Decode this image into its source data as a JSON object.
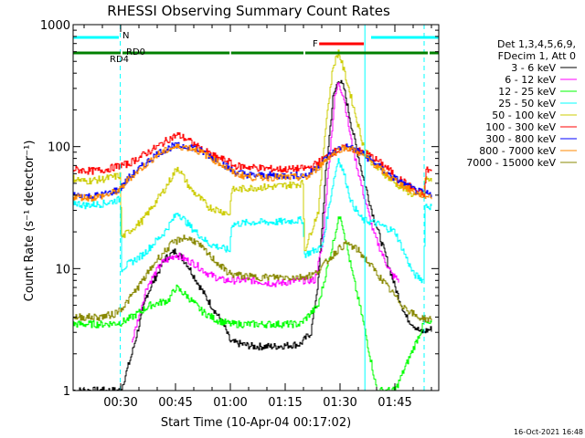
{
  "chart_data": {
    "type": "line",
    "title": "RHESSI Observing Summary Count Rates",
    "xlabel": "Start Time (10-Apr-04 00:17:02)",
    "ylabel": "Count Rate (s⁻¹ detector⁻¹)",
    "yscale": "log",
    "ylim": [
      1,
      1000
    ],
    "xlim_minutes": [
      17.0,
      117.0
    ],
    "x_ticks": [
      {
        "t": 30,
        "label": "00:30"
      },
      {
        "t": 45,
        "label": "00:45"
      },
      {
        "t": 60,
        "label": "01:00"
      },
      {
        "t": 75,
        "label": "01:15"
      },
      {
        "t": 90,
        "label": "01:30"
      },
      {
        "t": 105,
        "label": "01:45"
      }
    ],
    "y_ticks": [
      {
        "v": 1,
        "label": "1"
      },
      {
        "v": 10,
        "label": "10"
      },
      {
        "v": 100,
        "label": "100"
      },
      {
        "v": 1000,
        "label": "1000"
      }
    ],
    "legend_header": [
      "Det 1,3,4,5,6,9,",
      "FDecim 1, Att 0"
    ],
    "legend_position": "right",
    "timestamp": "16-Oct-2021 16:48",
    "series": [
      {
        "name": "3 - 6 keV",
        "color": "#000000",
        "points": [
          [
            17,
            1.0
          ],
          [
            30,
            1.0
          ],
          [
            33,
            2.0
          ],
          [
            37,
            6
          ],
          [
            42,
            12
          ],
          [
            45,
            14
          ],
          [
            48,
            11
          ],
          [
            53,
            6
          ],
          [
            58,
            3.5
          ],
          [
            60,
            2.5
          ],
          [
            66,
            2.3
          ],
          [
            72,
            2.3
          ],
          [
            79,
            2.4
          ],
          [
            82,
            3
          ],
          [
            84,
            8
          ],
          [
            86,
            60
          ],
          [
            88,
            250
          ],
          [
            89.5,
            360
          ],
          [
            91,
            300
          ],
          [
            93,
            150
          ],
          [
            96,
            60
          ],
          [
            99,
            27
          ],
          [
            102,
            14
          ],
          [
            105,
            7
          ],
          [
            108,
            4
          ],
          [
            112,
            3
          ],
          [
            115,
            3.2
          ]
        ]
      },
      {
        "name": "6 - 12 keV",
        "color": "#ff00ff",
        "points": [
          [
            33,
            2.5
          ],
          [
            37,
            7
          ],
          [
            41,
            11
          ],
          [
            45,
            13
          ],
          [
            50,
            11
          ],
          [
            54,
            9
          ],
          [
            58,
            8
          ],
          [
            60,
            8
          ],
          [
            66,
            8
          ],
          [
            72,
            7.5
          ],
          [
            79,
            8
          ],
          [
            83,
            8
          ],
          [
            85,
            15
          ],
          [
            87,
            80
          ],
          [
            88.5,
            250
          ],
          [
            89.5,
            340
          ],
          [
            91,
            250
          ],
          [
            93,
            110
          ],
          [
            96,
            45
          ],
          [
            99,
            20
          ],
          [
            102,
            12
          ],
          [
            104,
            9
          ],
          [
            106,
            8
          ]
        ]
      },
      {
        "name": "12 - 25 keV",
        "color": "#00ff00",
        "points": [
          [
            17,
            3.5
          ],
          [
            25,
            3.5
          ],
          [
            30,
            3.6
          ],
          [
            33,
            4
          ],
          [
            38,
            5
          ],
          [
            43,
            5.5
          ],
          [
            45,
            7
          ],
          [
            48,
            6
          ],
          [
            52,
            4.5
          ],
          [
            56,
            3.8
          ],
          [
            60,
            3.5
          ],
          [
            66,
            3.5
          ],
          [
            72,
            3.5
          ],
          [
            79,
            3.5
          ],
          [
            84,
            5
          ],
          [
            87,
            12
          ],
          [
            89,
            22
          ],
          [
            90,
            28
          ],
          [
            91,
            20
          ],
          [
            93,
            10
          ],
          [
            96,
            4
          ],
          [
            98,
            2
          ],
          [
            100,
            1.0
          ],
          [
            105,
            1.0
          ],
          [
            113,
            3.6
          ],
          [
            115,
            3.5
          ]
        ]
      },
      {
        "name": "25 - 50 keV",
        "color": "#00ffff",
        "points": [
          [
            17,
            35
          ],
          [
            20,
            33
          ],
          [
            25,
            34
          ],
          [
            29.8,
            37
          ],
          [
            30.2,
            10
          ],
          [
            36,
            13
          ],
          [
            42,
            20
          ],
          [
            45.5,
            29
          ],
          [
            49,
            22
          ],
          [
            54,
            16
          ],
          [
            59.8,
            14
          ],
          [
            60.2,
            23
          ],
          [
            66,
            24
          ],
          [
            72,
            24
          ],
          [
            79.8,
            25
          ],
          [
            80.2,
            13
          ],
          [
            85,
            15
          ],
          [
            88,
            50
          ],
          [
            89.5,
            80
          ],
          [
            91,
            60
          ],
          [
            93,
            35
          ],
          [
            96,
            25
          ],
          [
            99,
            24
          ],
          [
            102,
            22
          ],
          [
            105,
            20
          ],
          [
            110,
            9
          ],
          [
            112.8,
            8
          ],
          [
            113.2,
            33
          ],
          [
            115,
            32
          ]
        ]
      },
      {
        "name": "50 - 100 keV",
        "color": "#cccc00",
        "points": [
          [
            17,
            55
          ],
          [
            20,
            52
          ],
          [
            25,
            54
          ],
          [
            29.8,
            58
          ],
          [
            30.2,
            18
          ],
          [
            36,
            25
          ],
          [
            42,
            45
          ],
          [
            45.5,
            68
          ],
          [
            49,
            45
          ],
          [
            54,
            32
          ],
          [
            59.8,
            28
          ],
          [
            60.2,
            44
          ],
          [
            66,
            46
          ],
          [
            72,
            47
          ],
          [
            79.8,
            50
          ],
          [
            80.2,
            14
          ],
          [
            84,
            30
          ],
          [
            86,
            150
          ],
          [
            88,
            450
          ],
          [
            89.5,
            600
          ],
          [
            91,
            420
          ],
          [
            93,
            250
          ],
          [
            96,
            110
          ],
          [
            99,
            70
          ],
          [
            102,
            60
          ],
          [
            105,
            50
          ],
          [
            110,
            40
          ],
          [
            112.8,
            40
          ],
          [
            113.2,
            55
          ],
          [
            115,
            52
          ]
        ]
      },
      {
        "name": "100 - 300 keV",
        "color": "#ff0000",
        "points": [
          [
            17,
            65
          ],
          [
            22,
            63
          ],
          [
            26,
            65
          ],
          [
            29.8,
            70
          ],
          [
            32,
            72
          ],
          [
            36,
            85
          ],
          [
            40,
            100
          ],
          [
            43,
            115
          ],
          [
            45.5,
            125
          ],
          [
            48,
            115
          ],
          [
            52,
            95
          ],
          [
            56,
            82
          ],
          [
            59.8,
            75
          ],
          [
            60.2,
            70
          ],
          [
            65,
            68
          ],
          [
            70,
            66
          ],
          [
            75,
            65
          ],
          [
            79.8,
            66
          ],
          [
            82,
            68
          ],
          [
            85,
            78
          ],
          [
            88,
            90
          ],
          [
            91,
            98
          ],
          [
            94,
            95
          ],
          [
            98,
            85
          ],
          [
            102,
            70
          ],
          [
            106,
            55
          ],
          [
            110,
            45
          ],
          [
            113,
            40
          ],
          [
            113.5,
            65
          ],
          [
            115,
            63
          ]
        ]
      },
      {
        "name": "300 - 800 keV",
        "color": "#0000ff",
        "points": [
          [
            17,
            40
          ],
          [
            22,
            39
          ],
          [
            26,
            41
          ],
          [
            29.8,
            45
          ],
          [
            32,
            55
          ],
          [
            36,
            70
          ],
          [
            40,
            88
          ],
          [
            44,
            100
          ],
          [
            47,
            102
          ],
          [
            50,
            98
          ],
          [
            54,
            85
          ],
          [
            58,
            72
          ],
          [
            61,
            62
          ],
          [
            66,
            58
          ],
          [
            72,
            58
          ],
          [
            78,
            58
          ],
          [
            81,
            58
          ],
          [
            84,
            70
          ],
          [
            87,
            85
          ],
          [
            90,
            98
          ],
          [
            92,
            100
          ],
          [
            95,
            92
          ],
          [
            99,
            75
          ],
          [
            103,
            60
          ],
          [
            107,
            50
          ],
          [
            111,
            43
          ],
          [
            115,
            40
          ]
        ]
      },
      {
        "name": "800 - 7000 keV",
        "color": "#ff8800",
        "points": [
          [
            17,
            39
          ],
          [
            22,
            38
          ],
          [
            26,
            40
          ],
          [
            29.8,
            44
          ],
          [
            32,
            54
          ],
          [
            36,
            68
          ],
          [
            40,
            86
          ],
          [
            44,
            98
          ],
          [
            47,
            100
          ],
          [
            50,
            96
          ],
          [
            54,
            83
          ],
          [
            58,
            70
          ],
          [
            61,
            60
          ],
          [
            66,
            56
          ],
          [
            72,
            56
          ],
          [
            78,
            56
          ],
          [
            81,
            56
          ],
          [
            84,
            68
          ],
          [
            87,
            83
          ],
          [
            90,
            96
          ],
          [
            92,
            98
          ],
          [
            95,
            90
          ],
          [
            99,
            73
          ],
          [
            103,
            58
          ],
          [
            107,
            48
          ],
          [
            111,
            41
          ],
          [
            115,
            39
          ]
        ]
      },
      {
        "name": "7000 - 15000 keV",
        "color": "#888800",
        "points": [
          [
            17,
            4.0
          ],
          [
            24,
            4.0
          ],
          [
            28,
            4.2
          ],
          [
            31,
            5
          ],
          [
            36,
            8
          ],
          [
            40,
            12
          ],
          [
            44,
            16
          ],
          [
            47,
            18
          ],
          [
            50,
            17
          ],
          [
            54,
            13
          ],
          [
            58,
            10
          ],
          [
            60,
            9
          ],
          [
            66,
            8.5
          ],
          [
            72,
            8.5
          ],
          [
            79,
            8.5
          ],
          [
            83,
            9
          ],
          [
            87,
            12
          ],
          [
            90,
            15
          ],
          [
            92,
            16
          ],
          [
            95,
            14
          ],
          [
            99,
            10
          ],
          [
            103,
            7
          ],
          [
            107,
            5
          ],
          [
            111,
            4
          ],
          [
            115,
            3.8
          ]
        ]
      }
    ],
    "annotations": {
      "top_bars": [
        {
          "label": "N",
          "color": "#00ffff",
          "segments": [
            [
              17,
              29.5
            ],
            [
              98.5,
              117
            ]
          ],
          "label_t": 30.5
        },
        {
          "label": "F",
          "color": "#ff0000",
          "segments": [
            [
              84.3,
              96.5
            ]
          ],
          "label_t": 82.5
        },
        {
          "label": "RD0",
          "color": "#008000",
          "segments": [
            [
              30.5,
              59.8
            ],
            [
              60.2,
              80
            ],
            [
              80.5,
              114
            ],
            [
              114.5,
              117
            ]
          ],
          "label_t": 31.5
        },
        {
          "label": "RD4",
          "color": "#008000",
          "segments": [
            [
              17,
              30
            ]
          ],
          "label_t": 27
        }
      ],
      "vertical_lines": [
        {
          "t": 29.9,
          "color": "#00ffff",
          "style": "dashed"
        },
        {
          "t": 96.8,
          "color": "#00ffff",
          "style": "solid"
        },
        {
          "t": 113.0,
          "color": "#00ffff",
          "style": "dashed"
        }
      ]
    }
  }
}
